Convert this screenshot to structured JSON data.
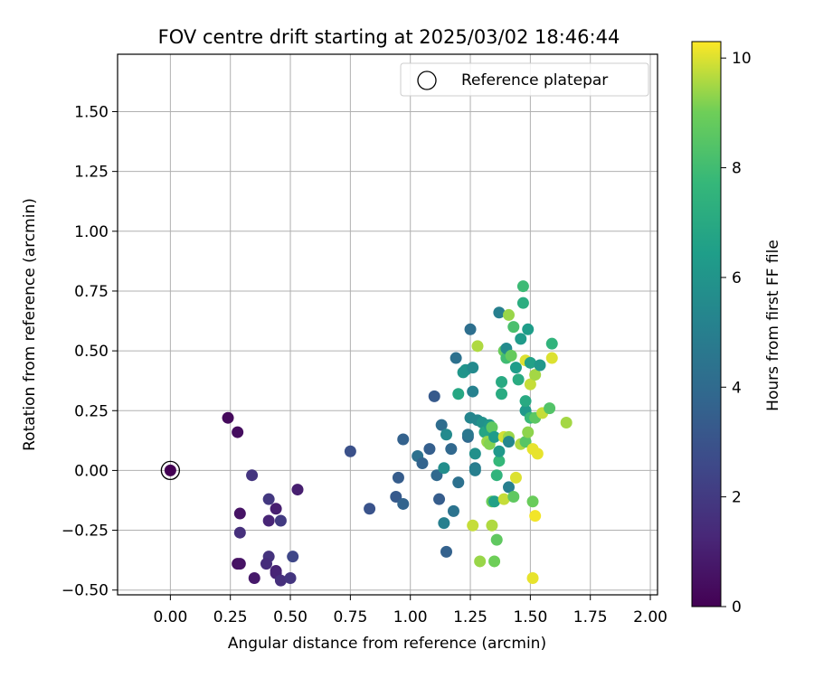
{
  "chart_data": {
    "type": "scatter",
    "title": "FOV centre drift starting at 2025/03/02 18:46:44",
    "xlabel": "Angular distance from reference (arcmin)",
    "ylabel": "Rotation from reference (arcmin)",
    "xlim": [
      -0.22,
      2.03
    ],
    "ylim": [
      -0.52,
      1.74
    ],
    "xticks": [
      0.0,
      0.25,
      0.5,
      0.75,
      1.0,
      1.25,
      1.5,
      1.75,
      2.0
    ],
    "xtick_labels": [
      "0.00",
      "0.25",
      "0.50",
      "0.75",
      "1.00",
      "1.25",
      "1.50",
      "1.75",
      "2.00"
    ],
    "yticks": [
      -0.5,
      -0.25,
      0.0,
      0.25,
      0.5,
      0.75,
      1.0,
      1.25,
      1.5
    ],
    "ytick_labels": [
      "−0.50",
      "−0.25",
      "0.00",
      "0.25",
      "0.50",
      "0.75",
      "1.00",
      "1.25",
      "1.50"
    ],
    "grid": true,
    "legend": {
      "position": "top-right",
      "entries": [
        "Reference platepar"
      ]
    },
    "colorbar": {
      "label": "Hours from first FF file",
      "range": [
        0,
        10.3
      ],
      "ticks": [
        0,
        2,
        4,
        6,
        8,
        10
      ],
      "tick_labels": [
        "0",
        "2",
        "4",
        "6",
        "8",
        "10"
      ],
      "colormap": "viridis"
    },
    "reference_point": {
      "x": 0.0,
      "y": 0.0
    },
    "series": [
      {
        "points": [
          {
            "x": 0.0,
            "y": 0.0,
            "c": 0.0
          },
          {
            "x": 0.24,
            "y": 0.22,
            "c": 0.3
          },
          {
            "x": 0.28,
            "y": 0.16,
            "c": 0.4
          },
          {
            "x": 0.29,
            "y": -0.18,
            "c": 0.6
          },
          {
            "x": 0.28,
            "y": -0.39,
            "c": 0.5
          },
          {
            "x": 0.29,
            "y": -0.39,
            "c": 0.6
          },
          {
            "x": 0.35,
            "y": -0.45,
            "c": 0.8
          },
          {
            "x": 0.29,
            "y": -0.26,
            "c": 1.6
          },
          {
            "x": 0.34,
            "y": -0.02,
            "c": 1.8
          },
          {
            "x": 0.41,
            "y": -0.12,
            "c": 1.9
          },
          {
            "x": 0.41,
            "y": -0.21,
            "c": 1.2
          },
          {
            "x": 0.44,
            "y": -0.16,
            "c": 1.0
          },
          {
            "x": 0.46,
            "y": -0.21,
            "c": 2.0
          },
          {
            "x": 0.41,
            "y": -0.36,
            "c": 1.7
          },
          {
            "x": 0.4,
            "y": -0.39,
            "c": 1.5
          },
          {
            "x": 0.44,
            "y": -0.42,
            "c": 1.1
          },
          {
            "x": 0.44,
            "y": -0.43,
            "c": 1.2
          },
          {
            "x": 0.46,
            "y": -0.46,
            "c": 1.6
          },
          {
            "x": 0.5,
            "y": -0.45,
            "c": 1.8
          },
          {
            "x": 0.51,
            "y": -0.36,
            "c": 2.5
          },
          {
            "x": 0.53,
            "y": -0.08,
            "c": 1.0
          },
          {
            "x": 0.75,
            "y": 0.08,
            "c": 2.9
          },
          {
            "x": 0.83,
            "y": -0.16,
            "c": 3.0
          },
          {
            "x": 0.94,
            "y": -0.11,
            "c": 3.3
          },
          {
            "x": 0.95,
            "y": -0.03,
            "c": 3.4
          },
          {
            "x": 0.97,
            "y": 0.13,
            "c": 3.6
          },
          {
            "x": 0.97,
            "y": -0.14,
            "c": 3.7
          },
          {
            "x": 1.03,
            "y": 0.06,
            "c": 4.3
          },
          {
            "x": 1.05,
            "y": 0.03,
            "c": 3.7
          },
          {
            "x": 1.08,
            "y": 0.09,
            "c": 3.5
          },
          {
            "x": 1.1,
            "y": 0.31,
            "c": 3.3
          },
          {
            "x": 1.11,
            "y": -0.02,
            "c": 3.9
          },
          {
            "x": 1.12,
            "y": -0.12,
            "c": 3.4
          },
          {
            "x": 1.13,
            "y": 0.19,
            "c": 4.1
          },
          {
            "x": 1.14,
            "y": 0.01,
            "c": 5.7
          },
          {
            "x": 1.14,
            "y": -0.22,
            "c": 5.0
          },
          {
            "x": 1.15,
            "y": -0.34,
            "c": 3.6
          },
          {
            "x": 1.15,
            "y": 0.15,
            "c": 5.5
          },
          {
            "x": 1.17,
            "y": 0.09,
            "c": 3.9
          },
          {
            "x": 1.18,
            "y": -0.17,
            "c": 4.4
          },
          {
            "x": 1.19,
            "y": 0.47,
            "c": 4.3
          },
          {
            "x": 1.2,
            "y": -0.05,
            "c": 4.3
          },
          {
            "x": 1.2,
            "y": 0.32,
            "c": 6.9
          },
          {
            "x": 1.22,
            "y": 0.41,
            "c": 6.1
          },
          {
            "x": 1.23,
            "y": 0.42,
            "c": 6.0
          },
          {
            "x": 1.24,
            "y": 0.14,
            "c": 3.9
          },
          {
            "x": 1.24,
            "y": 0.15,
            "c": 4.6
          },
          {
            "x": 1.25,
            "y": 0.59,
            "c": 4.2
          },
          {
            "x": 1.25,
            "y": 0.22,
            "c": 5.3
          },
          {
            "x": 1.26,
            "y": 0.33,
            "c": 5.1
          },
          {
            "x": 1.26,
            "y": 0.43,
            "c": 5.5
          },
          {
            "x": 1.26,
            "y": -0.23,
            "c": 9.8
          },
          {
            "x": 1.27,
            "y": 0.07,
            "c": 5.8
          },
          {
            "x": 1.27,
            "y": 0.01,
            "c": 4.8
          },
          {
            "x": 1.27,
            "y": 0.0,
            "c": 5.0
          },
          {
            "x": 1.28,
            "y": 0.52,
            "c": 9.6
          },
          {
            "x": 1.28,
            "y": 0.21,
            "c": 5.4
          },
          {
            "x": 1.29,
            "y": -0.38,
            "c": 9.4
          },
          {
            "x": 1.3,
            "y": 0.2,
            "c": 5.9
          },
          {
            "x": 1.31,
            "y": 0.16,
            "c": 6.8
          },
          {
            "x": 1.32,
            "y": 0.12,
            "c": 9.4
          },
          {
            "x": 1.33,
            "y": 0.11,
            "c": 9.2
          },
          {
            "x": 1.33,
            "y": 0.19,
            "c": 6.1
          },
          {
            "x": 1.34,
            "y": -0.13,
            "c": 8.9
          },
          {
            "x": 1.34,
            "y": 0.18,
            "c": 8.7
          },
          {
            "x": 1.34,
            "y": -0.23,
            "c": 9.6
          },
          {
            "x": 1.35,
            "y": -0.38,
            "c": 9.0
          },
          {
            "x": 1.35,
            "y": 0.14,
            "c": 6.3
          },
          {
            "x": 1.35,
            "y": -0.13,
            "c": 6.6
          },
          {
            "x": 1.36,
            "y": -0.02,
            "c": 7.5
          },
          {
            "x": 1.36,
            "y": -0.29,
            "c": 8.7
          },
          {
            "x": 1.37,
            "y": 0.04,
            "c": 7.7
          },
          {
            "x": 1.37,
            "y": 0.08,
            "c": 6.2
          },
          {
            "x": 1.37,
            "y": 0.66,
            "c": 5.0
          },
          {
            "x": 1.38,
            "y": 0.37,
            "c": 7.0
          },
          {
            "x": 1.38,
            "y": 0.32,
            "c": 7.1
          },
          {
            "x": 1.39,
            "y": -0.12,
            "c": 9.8
          },
          {
            "x": 1.39,
            "y": 0.14,
            "c": 9.9
          },
          {
            "x": 1.39,
            "y": 0.5,
            "c": 8.9
          },
          {
            "x": 1.4,
            "y": 0.47,
            "c": 8.0
          },
          {
            "x": 1.4,
            "y": 0.51,
            "c": 5.5
          },
          {
            "x": 1.41,
            "y": 0.65,
            "c": 9.4
          },
          {
            "x": 1.41,
            "y": 0.14,
            "c": 9.4
          },
          {
            "x": 1.41,
            "y": -0.07,
            "c": 5.0
          },
          {
            "x": 1.41,
            "y": 0.12,
            "c": 5.4
          },
          {
            "x": 1.42,
            "y": 0.48,
            "c": 8.8
          },
          {
            "x": 1.43,
            "y": 0.6,
            "c": 8.2
          },
          {
            "x": 1.43,
            "y": -0.11,
            "c": 8.7
          },
          {
            "x": 1.44,
            "y": 0.43,
            "c": 6.4
          },
          {
            "x": 1.44,
            "y": -0.03,
            "c": 10.0
          },
          {
            "x": 1.45,
            "y": 0.38,
            "c": 7.1
          },
          {
            "x": 1.46,
            "y": 0.55,
            "c": 6.3
          },
          {
            "x": 1.46,
            "y": 0.11,
            "c": 9.6
          },
          {
            "x": 1.47,
            "y": 0.7,
            "c": 7.2
          },
          {
            "x": 1.47,
            "y": 0.77,
            "c": 7.9
          },
          {
            "x": 1.48,
            "y": 0.25,
            "c": 6.2
          },
          {
            "x": 1.48,
            "y": 0.12,
            "c": 8.5
          },
          {
            "x": 1.48,
            "y": 0.29,
            "c": 7.0
          },
          {
            "x": 1.48,
            "y": 0.46,
            "c": 10.0
          },
          {
            "x": 1.49,
            "y": 0.59,
            "c": 6.4
          },
          {
            "x": 1.49,
            "y": 0.16,
            "c": 9.3
          },
          {
            "x": 1.5,
            "y": 0.22,
            "c": 7.8
          },
          {
            "x": 1.5,
            "y": 0.36,
            "c": 9.8
          },
          {
            "x": 1.5,
            "y": 0.45,
            "c": 6.6
          },
          {
            "x": 1.51,
            "y": -0.13,
            "c": 8.9
          },
          {
            "x": 1.51,
            "y": 0.09,
            "c": 10.1
          },
          {
            "x": 1.51,
            "y": -0.45,
            "c": 10.1
          },
          {
            "x": 1.52,
            "y": -0.19,
            "c": 10.2
          },
          {
            "x": 1.52,
            "y": 0.22,
            "c": 8.6
          },
          {
            "x": 1.52,
            "y": 0.4,
            "c": 9.5
          },
          {
            "x": 1.53,
            "y": 0.07,
            "c": 10.1
          },
          {
            "x": 1.54,
            "y": 0.44,
            "c": 6.1
          },
          {
            "x": 1.55,
            "y": 0.24,
            "c": 9.8
          },
          {
            "x": 1.58,
            "y": 0.26,
            "c": 8.4
          },
          {
            "x": 1.59,
            "y": 0.47,
            "c": 10.0
          },
          {
            "x": 1.59,
            "y": 0.53,
            "c": 7.5
          },
          {
            "x": 1.65,
            "y": 0.2,
            "c": 9.5
          }
        ]
      }
    ]
  }
}
